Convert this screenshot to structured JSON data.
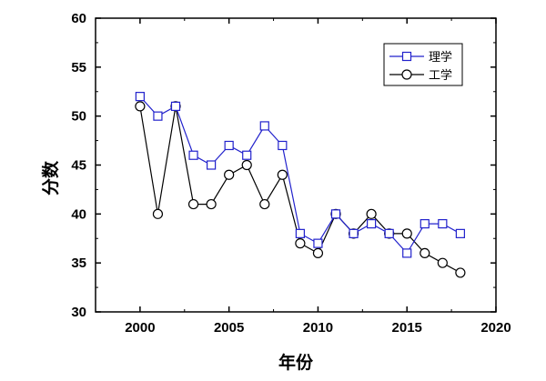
{
  "chart_data": {
    "type": "line",
    "xlabel": "年份",
    "ylabel": "分数",
    "xlim": [
      1997.5,
      2020
    ],
    "ylim": [
      30,
      60
    ],
    "xticks": [
      2000,
      2005,
      2010,
      2015,
      2020
    ],
    "yticks": [
      30,
      35,
      40,
      45,
      50,
      55,
      60
    ],
    "grid": false,
    "legend_position": "top-right",
    "series": [
      {
        "name": "理学",
        "color": "#2222cc",
        "marker": "square",
        "x": [
          2000,
          2001,
          2002,
          2003,
          2004,
          2005,
          2006,
          2007,
          2008,
          2009,
          2010,
          2011,
          2012,
          2013,
          2014,
          2015,
          2016,
          2017,
          2018
        ],
        "values": [
          52,
          50,
          51,
          46,
          45,
          47,
          46,
          49,
          47,
          38,
          37,
          40,
          38,
          39,
          38,
          36,
          39,
          39,
          38
        ]
      },
      {
        "name": "工学",
        "color": "#000000",
        "marker": "circle",
        "x": [
          2000,
          2001,
          2002,
          2003,
          2004,
          2005,
          2006,
          2007,
          2008,
          2009,
          2010,
          2011,
          2012,
          2013,
          2014,
          2015,
          2016,
          2017,
          2018
        ],
        "values": [
          51,
          40,
          51,
          41,
          41,
          44,
          45,
          41,
          44,
          37,
          36,
          40,
          38,
          40,
          38,
          38,
          36,
          35,
          34
        ]
      }
    ]
  }
}
